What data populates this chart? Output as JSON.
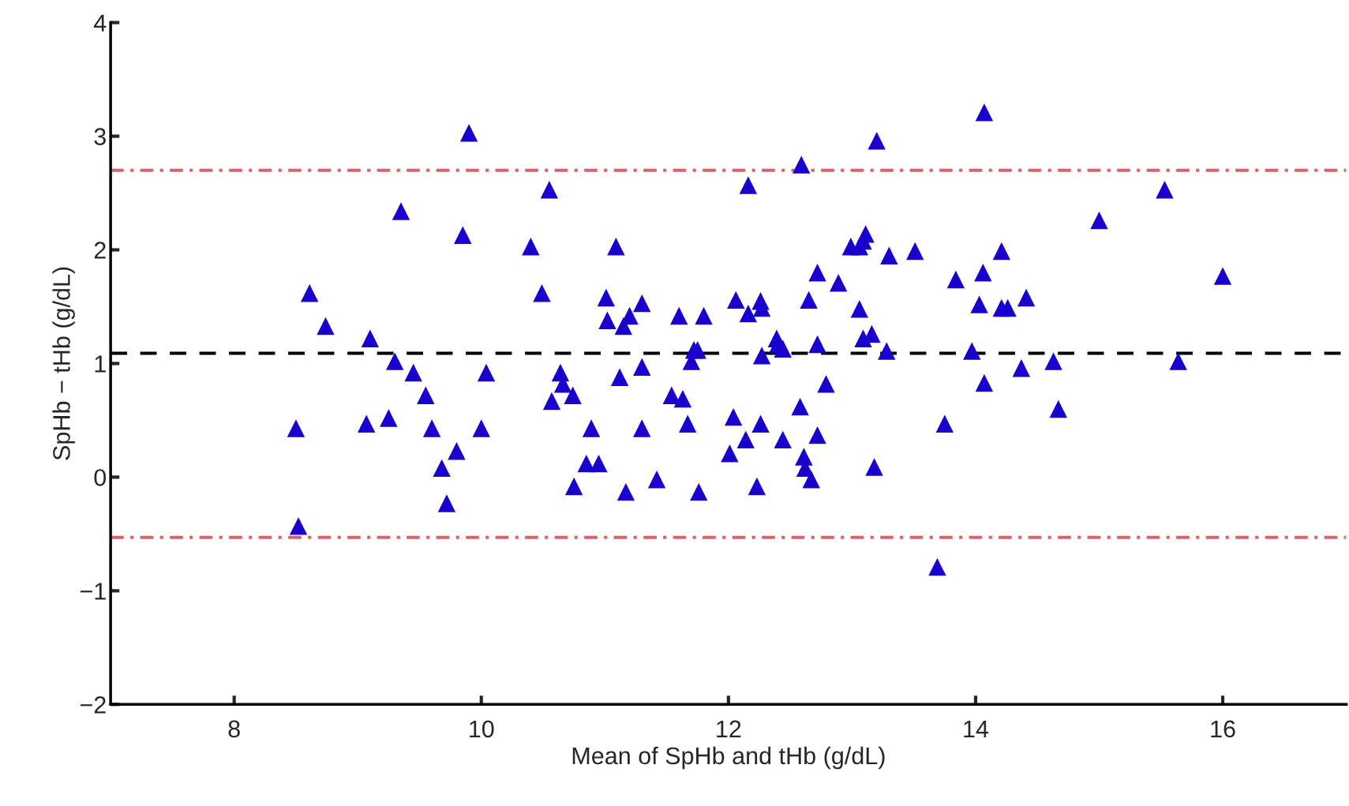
{
  "chart_data": {
    "type": "scatter",
    "xlabel": "Mean of SpHb and tHb (g/dL)",
    "ylabel": "SpHb − tHb (g/dL)",
    "xlim": [
      7,
      17
    ],
    "ylim": [
      -2,
      4
    ],
    "xticks": [
      8,
      10,
      12,
      14,
      16
    ],
    "yticks": [
      {
        "value": -2,
        "label": "−2"
      },
      {
        "value": -1,
        "label": "−1"
      },
      0,
      1,
      2,
      3,
      4
    ],
    "grid": false,
    "marker": "triangle",
    "ref_lines": [
      {
        "axis": "y",
        "value": 2.7,
        "color": "#d9626b",
        "line_style": "dashdot"
      },
      {
        "axis": "y",
        "value": 1.09,
        "color": "#000000",
        "line_style": "dashed"
      },
      {
        "axis": "y",
        "value": -0.53,
        "color": "#d9626b",
        "line_style": "dashdot"
      }
    ],
    "series": [
      {
        "color": "#1a00cc",
        "x": [
          8.5,
          8.52,
          8.61,
          8.74,
          9.07,
          9.1,
          9.25,
          9.3,
          9.35,
          9.45,
          9.55,
          9.6,
          9.68,
          9.72,
          9.8,
          9.85,
          9.9,
          10.0,
          10.04,
          10.4,
          10.49,
          10.55,
          10.57,
          10.64,
          10.66,
          10.74,
          10.75,
          10.85,
          10.89,
          10.95,
          11.01,
          11.02,
          11.09,
          11.12,
          11.15,
          11.17,
          11.2,
          11.3,
          11.3,
          11.3,
          11.42,
          11.54,
          11.6,
          11.63,
          11.67,
          11.7,
          11.72,
          11.75,
          11.76,
          11.8,
          12.01,
          12.04,
          12.06,
          12.14,
          12.16,
          12.16,
          12.23,
          12.26,
          12.26,
          12.27,
          12.27,
          12.39,
          12.4,
          12.44,
          12.44,
          12.58,
          12.59,
          12.61,
          12.62,
          12.65,
          12.67,
          12.72,
          12.72,
          12.72,
          12.79,
          12.89,
          12.99,
          13.06,
          13.09,
          13.11,
          13.06,
          13.09,
          13.16,
          13.18,
          13.2,
          13.28,
          13.3,
          13.51,
          13.69,
          13.75,
          13.84,
          13.97,
          14.03,
          14.06,
          14.07,
          14.07,
          14.21,
          14.21,
          14.26,
          14.37,
          14.41,
          14.63,
          14.67,
          15.0,
          15.53,
          15.64,
          16.0
        ],
        "values": [
          0.43,
          -0.43,
          1.62,
          1.33,
          0.47,
          1.22,
          0.52,
          1.02,
          2.34,
          0.92,
          0.72,
          0.43,
          0.08,
          -0.23,
          0.23,
          2.13,
          3.03,
          0.43,
          0.92,
          2.03,
          1.62,
          2.53,
          0.67,
          0.92,
          0.82,
          0.72,
          -0.08,
          0.12,
          0.43,
          0.12,
          1.58,
          1.38,
          2.03,
          0.88,
          1.33,
          -0.13,
          1.42,
          0.97,
          0.43,
          1.53,
          -0.02,
          0.72,
          1.42,
          0.69,
          0.47,
          1.02,
          1.12,
          1.12,
          -0.13,
          1.42,
          0.21,
          0.53,
          1.56,
          0.33,
          1.44,
          2.57,
          -0.08,
          0.47,
          1.55,
          1.49,
          1.07,
          1.22,
          1.17,
          1.13,
          0.33,
          0.62,
          2.75,
          0.18,
          0.08,
          1.56,
          -0.02,
          1.8,
          1.17,
          0.37,
          0.82,
          1.71,
          2.03,
          2.03,
          2.08,
          2.14,
          1.48,
          1.22,
          1.26,
          0.09,
          2.96,
          1.11,
          1.95,
          1.99,
          -0.79,
          0.47,
          1.74,
          1.11,
          1.52,
          1.8,
          0.83,
          3.21,
          1.99,
          1.49,
          1.49,
          0.96,
          1.58,
          1.02,
          0.6,
          2.26,
          2.53,
          1.02,
          1.77
        ]
      }
    ]
  }
}
